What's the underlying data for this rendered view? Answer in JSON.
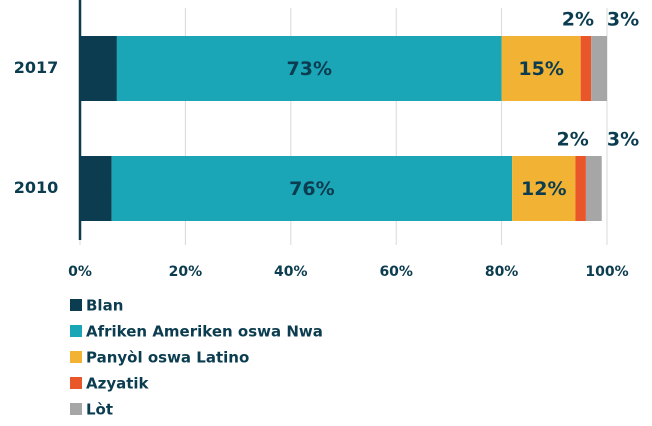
{
  "chart_data": {
    "type": "stacked-bar-horizontal",
    "categories": [
      "2017",
      "2010"
    ],
    "series": [
      {
        "name": "Blan",
        "color": "#0b3c4f",
        "values": [
          7,
          6
        ],
        "value_labels": [
          "7%",
          "6%"
        ]
      },
      {
        "name": "Afriken Ameriken oswa Nwa",
        "color": "#1aa6b7",
        "values": [
          73,
          76
        ],
        "value_labels": [
          "73%",
          "76%"
        ]
      },
      {
        "name": "Panyòl oswa Latino",
        "color": "#f2b233",
        "values": [
          15,
          12
        ],
        "value_labels": [
          "15%",
          "12%"
        ]
      },
      {
        "name": "Azyatik",
        "color": "#e8562a",
        "values": [
          2,
          2
        ],
        "value_labels": [
          "2%",
          "2%"
        ]
      },
      {
        "name": "Lòt",
        "color": "#a6a6a6",
        "values": [
          3,
          3
        ],
        "value_labels": [
          "3%",
          "3%"
        ]
      }
    ],
    "xlim": [
      0,
      100
    ],
    "xticks": [
      {
        "value": 0,
        "label": "0%"
      },
      {
        "value": 20,
        "label": "20%"
      },
      {
        "value": 40,
        "label": "40%"
      },
      {
        "value": 60,
        "label": "60%"
      },
      {
        "value": 80,
        "label": "80%"
      },
      {
        "value": 100,
        "label": "100%"
      }
    ],
    "grid": true,
    "legend": "bottom-left"
  }
}
